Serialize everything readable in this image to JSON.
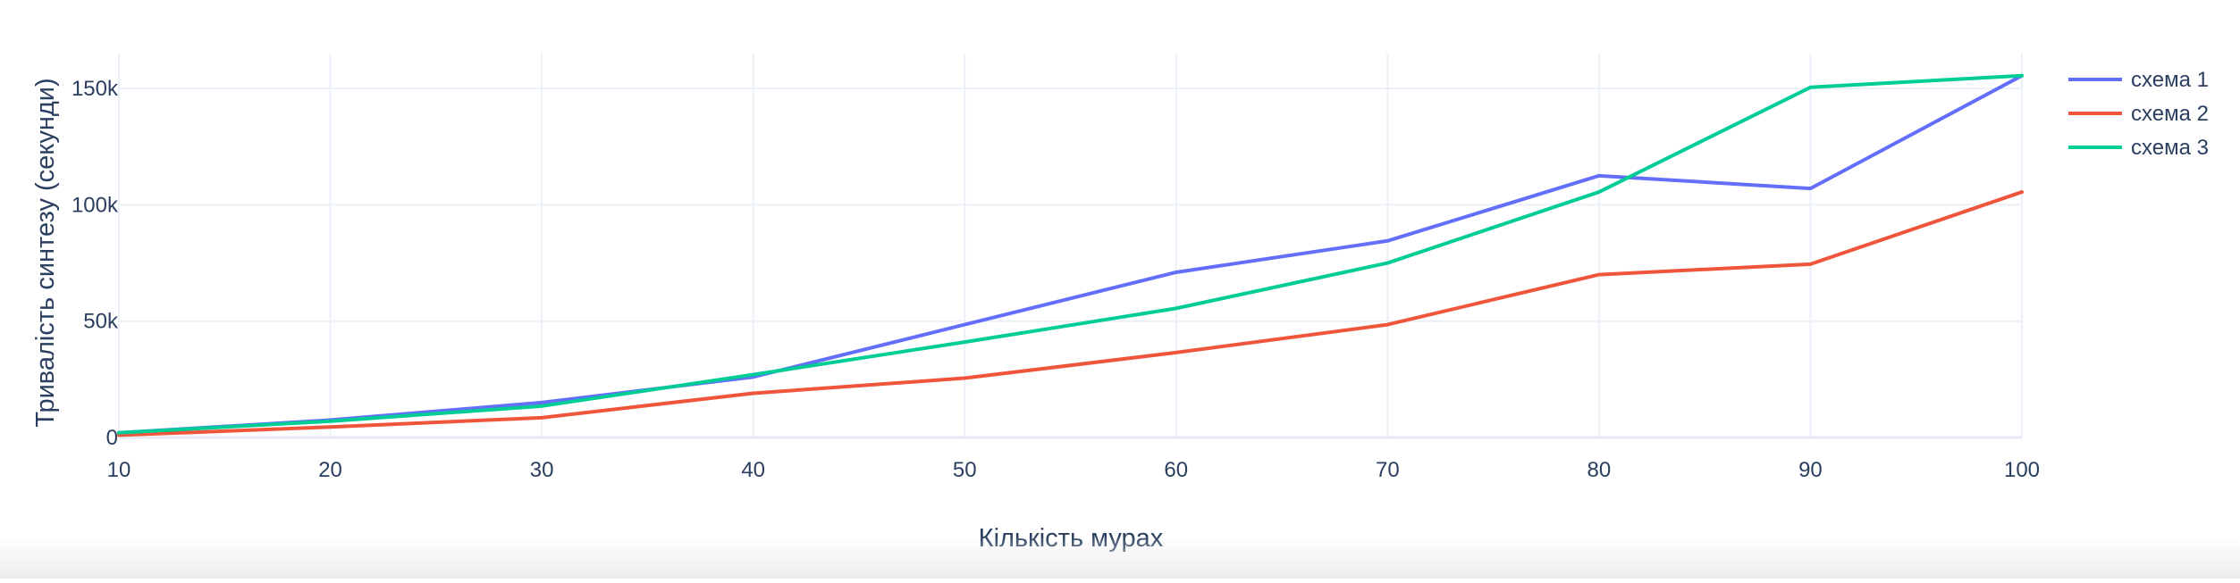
{
  "chart_data": {
    "type": "line",
    "title": "",
    "xlabel": "Кількість мурах",
    "ylabel": "Тривалість синтезу (секунди)",
    "x": [
      10,
      20,
      30,
      40,
      50,
      60,
      70,
      80,
      90,
      100
    ],
    "xlim": [
      10,
      100
    ],
    "ylim": [
      0,
      165000
    ],
    "x_ticks": [
      10,
      20,
      30,
      40,
      50,
      60,
      70,
      80,
      90,
      100
    ],
    "y_ticks": [
      0,
      50000,
      100000,
      150000
    ],
    "y_tick_labels": [
      "0",
      "50k",
      "100k",
      "150k"
    ],
    "grid": true,
    "legend_placement": "top-right",
    "series": [
      {
        "name": "схема 1",
        "color": "#636efa",
        "values": [
          2000,
          7500,
          15000,
          26000,
          48500,
          71000,
          84500,
          112500,
          107000,
          155500
        ]
      },
      {
        "name": "схема 2",
        "color": "#ef553b",
        "values": [
          1000,
          4500,
          8500,
          19000,
          25500,
          36500,
          48500,
          70000,
          74500,
          105500
        ]
      },
      {
        "name": "схема 3",
        "color": "#00cc96",
        "values": [
          2000,
          7000,
          13500,
          27000,
          41000,
          55500,
          75000,
          105500,
          150500,
          155500
        ]
      }
    ]
  }
}
